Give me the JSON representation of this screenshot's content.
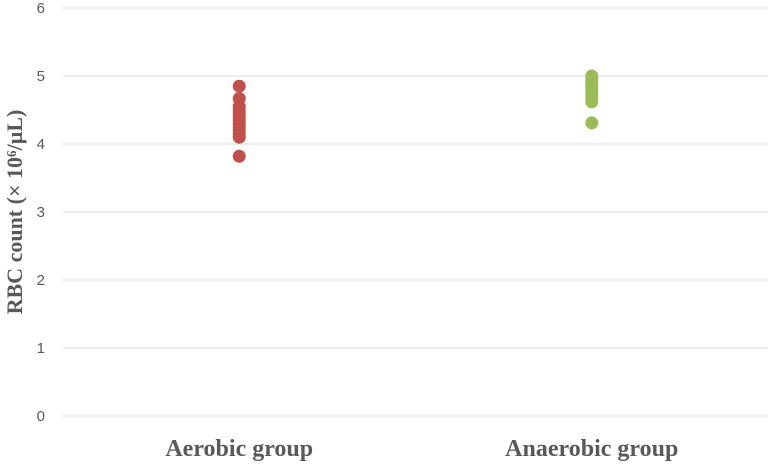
{
  "chart_data": {
    "type": "scatter",
    "title": "",
    "xlabel": "",
    "ylabel": "RBC count (× 10⁶/µL)",
    "categories": [
      "Aerobic group",
      "Anaerobic group"
    ],
    "ylim": [
      0,
      6
    ],
    "yticks": [
      "0",
      "1",
      "2",
      "3",
      "4",
      "5",
      "6"
    ],
    "grid": true,
    "legend": "none",
    "series": [
      {
        "category": "Aerobic group",
        "color": "#c0504d",
        "values": [
          4.85,
          4.67,
          4.55,
          4.5,
          4.45,
          4.4,
          4.35,
          4.3,
          4.25,
          4.2,
          4.15,
          4.1,
          3.82
        ]
      },
      {
        "category": "Anaerobic group",
        "color": "#9bbb59",
        "values": [
          5.0,
          4.95,
          4.9,
          4.85,
          4.8,
          4.75,
          4.7,
          4.62,
          4.31
        ]
      }
    ]
  }
}
